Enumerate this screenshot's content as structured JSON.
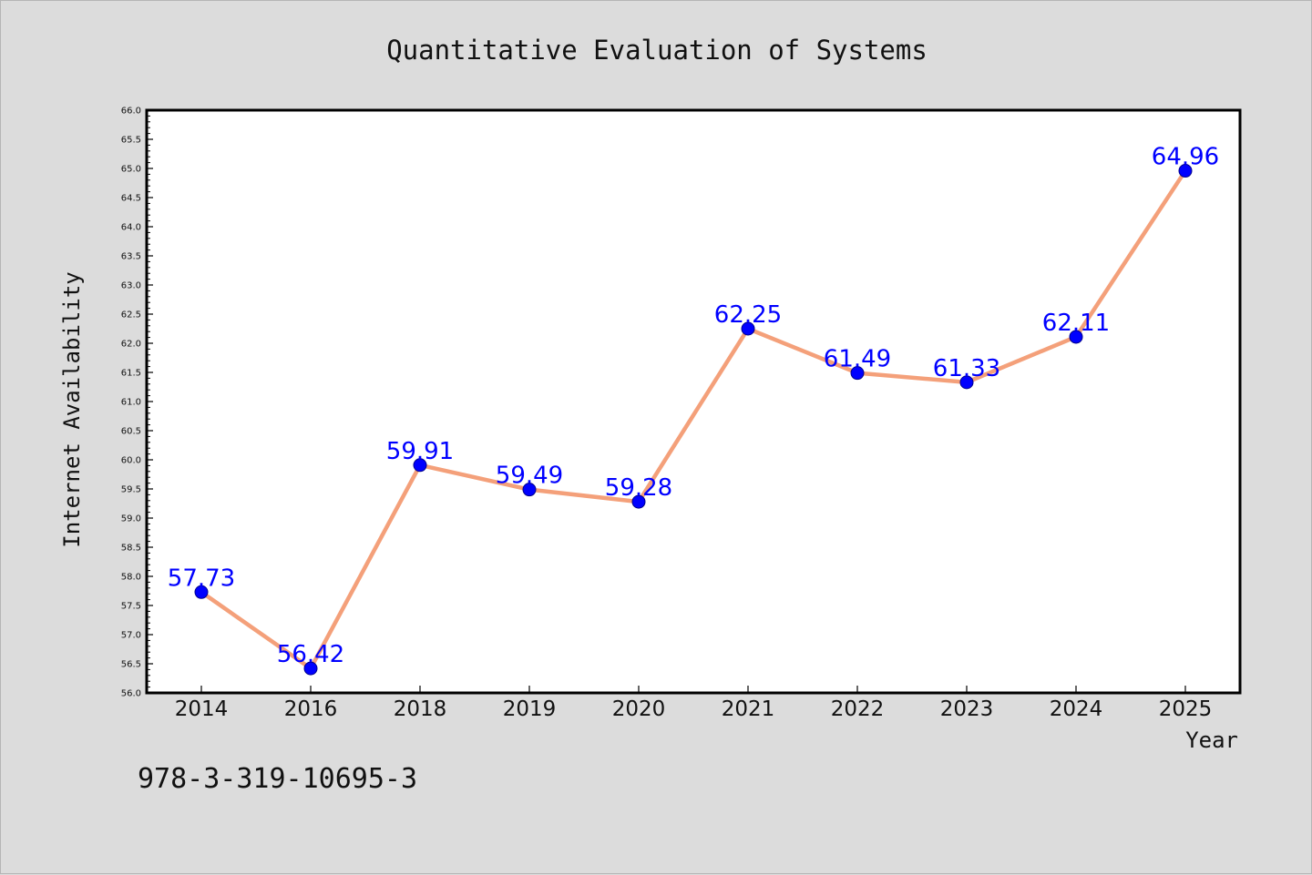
{
  "chart_data": {
    "type": "line",
    "title": "Quantitative Evaluation of Systems",
    "xlabel": "Year",
    "ylabel": "Internet Availability",
    "categories": [
      "2014",
      "2016",
      "2018",
      "2019",
      "2020",
      "2021",
      "2022",
      "2023",
      "2024",
      "2025"
    ],
    "series": [
      {
        "values": [
          57.73,
          56.42,
          59.91,
          59.49,
          59.28,
          62.25,
          61.49,
          61.33,
          62.11,
          64.96
        ],
        "data_labels": [
          "57.73",
          "56.42",
          "59.91",
          "59.49",
          "59.28",
          "62.25",
          "61.49",
          "61.33",
          "62.11",
          "64.96"
        ]
      }
    ],
    "ylim": [
      56.0,
      66.0
    ],
    "y_ticks": [
      "56.0",
      "56.5",
      "57.0",
      "57.5",
      "58.0",
      "58.5",
      "59.0",
      "59.5",
      "60.0",
      "60.5",
      "61.0",
      "61.5",
      "62.0",
      "62.5",
      "63.0",
      "63.5",
      "64.0",
      "64.5",
      "65.0",
      "65.5",
      "66.0"
    ],
    "grid": false,
    "legend": "none",
    "colors": {
      "line": "#f4a07a",
      "marker": "#0000ff",
      "data_label": "#0000ff",
      "background": "#dcdcdc",
      "plot_background": "#ffffff"
    }
  },
  "annotation": "978-3-319-10695-3"
}
